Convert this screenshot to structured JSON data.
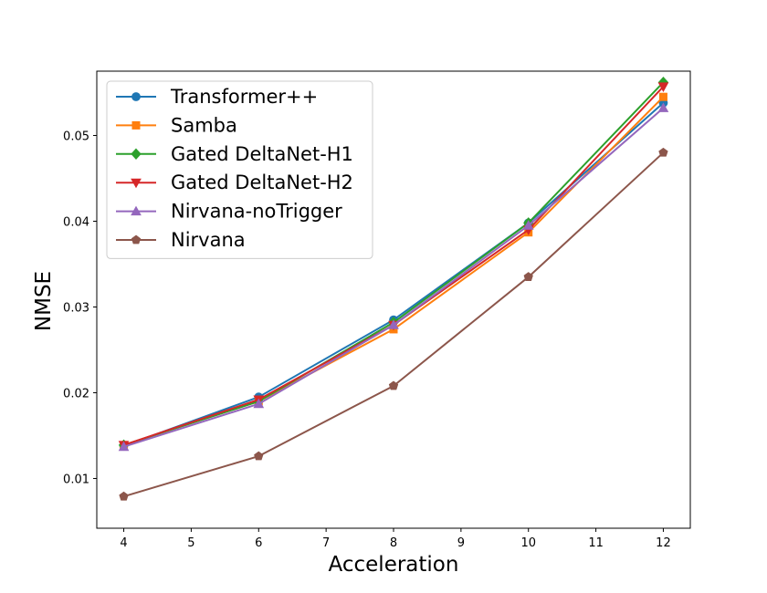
{
  "chart_data": {
    "type": "line",
    "title": "",
    "xlabel": "Acceleration",
    "ylabel": "NMSE",
    "xlim": [
      3.6,
      12.4
    ],
    "ylim": [
      0.0042,
      0.0575
    ],
    "x_ticks": [
      4,
      5,
      6,
      7,
      8,
      9,
      10,
      11,
      12
    ],
    "y_ticks": [
      0.01,
      0.02,
      0.03,
      0.04,
      0.05
    ],
    "y_tick_labels": [
      "0.01",
      "0.02",
      "0.03",
      "0.04",
      "0.05"
    ],
    "grid": false,
    "legend_position": "top-left",
    "x": [
      4,
      6,
      8,
      10,
      12
    ],
    "series": [
      {
        "name": "Transformer++",
        "color": "#1f77b4",
        "marker": "circle",
        "values": [
          0.0138,
          0.0195,
          0.0285,
          0.0398,
          0.0538
        ]
      },
      {
        "name": "Samba",
        "color": "#ff7f0e",
        "marker": "square",
        "values": [
          0.0139,
          0.019,
          0.0274,
          0.0387,
          0.0545
        ]
      },
      {
        "name": "Gated DeltaNet-H1",
        "color": "#2ca02c",
        "marker": "diamond",
        "values": [
          0.0139,
          0.019,
          0.0282,
          0.0398,
          0.0562
        ]
      },
      {
        "name": "Gated DeltaNet-H2",
        "color": "#d62728",
        "marker": "triangle-down",
        "values": [
          0.0139,
          0.0192,
          0.0279,
          0.039,
          0.0557
        ]
      },
      {
        "name": "Nirvana-noTrigger",
        "color": "#9467bd",
        "marker": "triangle-up",
        "values": [
          0.0137,
          0.0187,
          0.0279,
          0.0395,
          0.0532
        ]
      },
      {
        "name": "Nirvana",
        "color": "#8c564b",
        "marker": "pentagon",
        "values": [
          0.0079,
          0.0126,
          0.0208,
          0.0335,
          0.048
        ]
      }
    ]
  }
}
